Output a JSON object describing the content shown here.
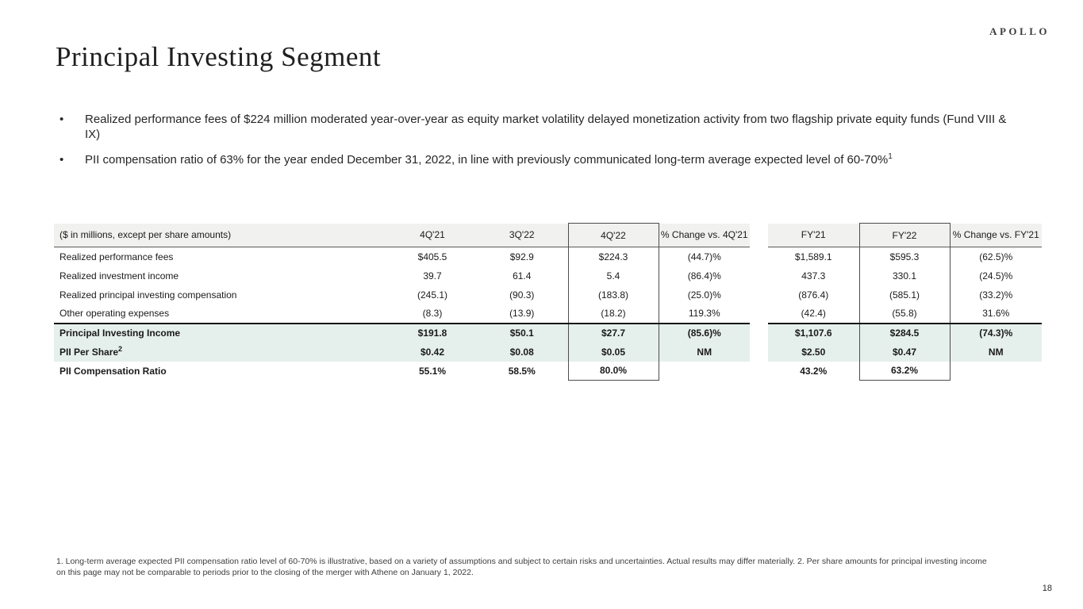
{
  "slide": {
    "logo": "APOLLO",
    "title": "Principal Investing Segment",
    "page_number": "18"
  },
  "bullets": [
    {
      "marker": "•",
      "text": "Realized performance fees of $224 million moderated year-over-year as equity market volatility delayed monetization activity from two flagship private equity funds (Fund VIII & IX)",
      "sup": ""
    },
    {
      "marker": "•",
      "text": "PII compensation ratio of 63% for the year ended December 31, 2022, in line with previously communicated long-term average expected level of 60-70%",
      "sup": "1"
    }
  ],
  "table": {
    "header": {
      "label": "($ in millions, except per share amounts)",
      "columns": [
        "4Q'21",
        "3Q'22",
        "4Q'22",
        "% Change vs. 4Q'21",
        "FY'21",
        "FY'22",
        "% Change vs. FY'21"
      ]
    },
    "rows": [
      {
        "label": "Realized performance fees",
        "label_sup": "",
        "values": [
          "$405.5",
          "$92.9",
          "$224.3",
          "(44.7)%",
          "$1,589.1",
          "$595.3",
          "(62.5)%"
        ],
        "bold": false,
        "mint": false,
        "thickline": false
      },
      {
        "label": "Realized investment income",
        "label_sup": "",
        "values": [
          "39.7",
          "61.4",
          "5.4",
          "(86.4)%",
          "437.3",
          "330.1",
          "(24.5)%"
        ],
        "bold": false,
        "mint": false,
        "thickline": false
      },
      {
        "label": "Realized principal investing compensation",
        "label_sup": "",
        "values": [
          "(245.1)",
          "(90.3)",
          "(183.8)",
          "(25.0)%",
          "(876.4)",
          "(585.1)",
          "(33.2)%"
        ],
        "bold": false,
        "mint": false,
        "thickline": false
      },
      {
        "label": "Other operating expenses",
        "label_sup": "",
        "values": [
          "(8.3)",
          "(13.9)",
          "(18.2)",
          "119.3%",
          "(42.4)",
          "(55.8)",
          "31.6%"
        ],
        "bold": false,
        "mint": false,
        "thickline": true
      },
      {
        "label": "Principal Investing Income",
        "label_sup": "",
        "values": [
          "$191.8",
          "$50.1",
          "$27.7",
          "(85.6)%",
          "$1,107.6",
          "$284.5",
          "(74.3)%"
        ],
        "bold": true,
        "mint": true,
        "thickline": false
      },
      {
        "label": "PII Per Share",
        "label_sup": "2",
        "values": [
          "$0.42",
          "$0.08",
          "$0.05",
          "NM",
          "$2.50",
          "$0.47",
          "NM"
        ],
        "bold": true,
        "mint": true,
        "thickline": false
      },
      {
        "label": "PII Compensation Ratio",
        "label_sup": "",
        "values": [
          "55.1%",
          "58.5%",
          "80.0%",
          "",
          "43.2%",
          "63.2%",
          ""
        ],
        "bold": true,
        "mint": false,
        "thickline": false
      }
    ]
  },
  "footnote": "1. Long-term average expected PII compensation ratio level of 60-70% is illustrative, based on a variety of assumptions and subject to certain risks and uncertainties. Actual results may differ materially. 2. Per share amounts for principal investing income on this page may not be comparable to periods prior to the closing of the merger with Athene on January 1, 2022.",
  "colors": {
    "header_bg": "#f1f1ef",
    "highlight_bg": "#e5efeb",
    "box_border": "#4d4d4d",
    "thick_line": "#141414",
    "text": "#1a1a1a"
  }
}
